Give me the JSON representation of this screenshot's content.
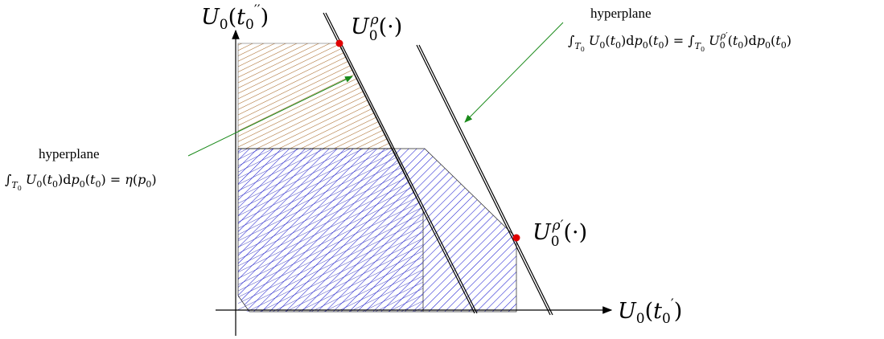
{
  "axes": {
    "x_label": "U_0(t_0')",
    "y_label": "U_0(t_0'')"
  },
  "points": {
    "rho_label": "U_0^ρ(·)",
    "rho_prime_label": "U_0^ρ'(·)",
    "point_color": "#e00000"
  },
  "annotations": {
    "left": {
      "title": "hyperplane",
      "formula": "∫_{T_0} U_0(t_0)dp_0(t_0) = η(p_0)"
    },
    "right": {
      "title": "hyperplane",
      "formula": "∫_{T_0} U_0(t_0)dp_0(t_0) = ∫_{T_0} U_0^ρ'(t_0)dp_0(t_0)"
    },
    "arrow_color": "#1a8a1a"
  },
  "regions": {
    "brown_hatch_color": "#a86a2a",
    "blue_hatch_color": "#1a1ad0"
  }
}
